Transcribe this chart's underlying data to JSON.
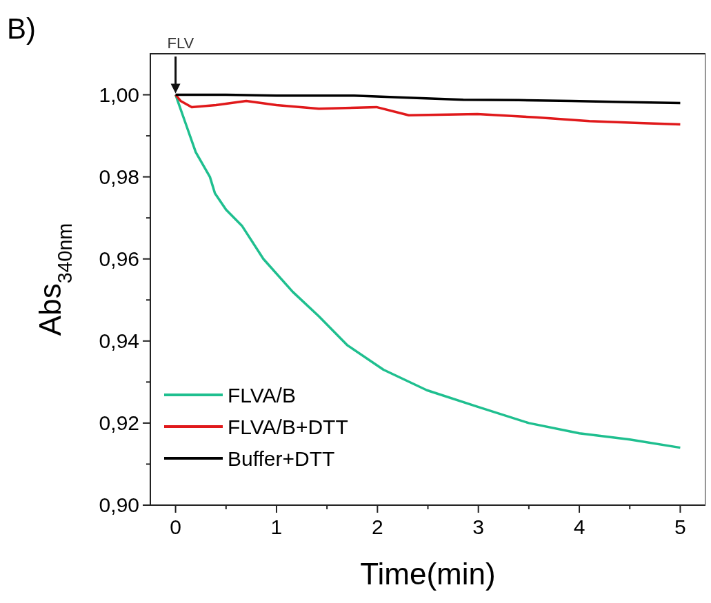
{
  "chart_data": {
    "type": "line",
    "xlabel": "Time(min)",
    "ylabel": "Abs$_{340nm}$",
    "xlim": [
      -0.25,
      5.25
    ],
    "ylim": [
      0.9,
      1.01
    ],
    "xticks": [
      0,
      {
        "value": 0.5,
        "label": null
      },
      1,
      {
        "value": 1.5,
        "label": null
      },
      2,
      {
        "value": 2.5,
        "label": null
      },
      3,
      {
        "value": 3.5,
        "label": null
      },
      4,
      {
        "value": 4.5,
        "label": null
      },
      5
    ],
    "yticks": [
      {
        "value": 0.9,
        "label": "0,90"
      },
      {
        "value": 0.91,
        "label": null
      },
      {
        "value": 0.92,
        "label": "0,92"
      },
      {
        "value": 0.93,
        "label": null
      },
      {
        "value": 0.94,
        "label": "0,94"
      },
      {
        "value": 0.95,
        "label": null
      },
      {
        "value": 0.96,
        "label": "0,96"
      },
      {
        "value": 0.97,
        "label": null
      },
      {
        "value": 0.98,
        "label": "0,98"
      },
      {
        "value": 0.99,
        "label": null
      },
      {
        "value": 1.0,
        "label": "1,00"
      }
    ],
    "grid": false,
    "legend": "bottom left",
    "marker": "none",
    "line_style": "solid",
    "annotations": [
      "B)",
      {
        "text": "FLV",
        "x": 0,
        "y": 1.0
      }
    ],
    "series": [
      {
        "name": "FLVA/B",
        "color": "#1fbf8f",
        "x": [
          0,
          0.1,
          0.2,
          0.34,
          0.39,
          0.5,
          0.66,
          0.87,
          1.16,
          1.42,
          1.7,
          2.06,
          2.49,
          2.99,
          3.5,
          4.0,
          4.5,
          5.0
        ],
        "values": [
          1.0,
          0.993,
          0.986,
          0.98,
          0.976,
          0.972,
          0.968,
          0.96,
          0.952,
          0.946,
          0.939,
          0.933,
          0.928,
          0.924,
          0.92,
          0.9175,
          0.916,
          0.914
        ]
      },
      {
        "name": "FLVA/B+DTT",
        "color": "#e0191b",
        "x": [
          0,
          0.05,
          0.16,
          0.4,
          0.7,
          1.0,
          1.42,
          1.99,
          2.31,
          2.99,
          3.57,
          4.1,
          4.64,
          5.0
        ],
        "values": [
          1.0,
          0.9985,
          0.997,
          0.9975,
          0.9985,
          0.9975,
          0.9966,
          0.997,
          0.995,
          0.9953,
          0.9945,
          0.9936,
          0.9931,
          0.9928
        ]
      },
      {
        "name": "Buffer+DTT",
        "color": "#000000",
        "x": [
          0,
          0.5,
          1.0,
          1.77,
          2.3,
          2.85,
          3.4,
          3.92,
          4.5,
          5.0
        ],
        "values": [
          1.0,
          1.0,
          0.9998,
          0.9998,
          0.9993,
          0.9988,
          0.9987,
          0.9985,
          0.9982,
          0.998
        ]
      }
    ]
  }
}
